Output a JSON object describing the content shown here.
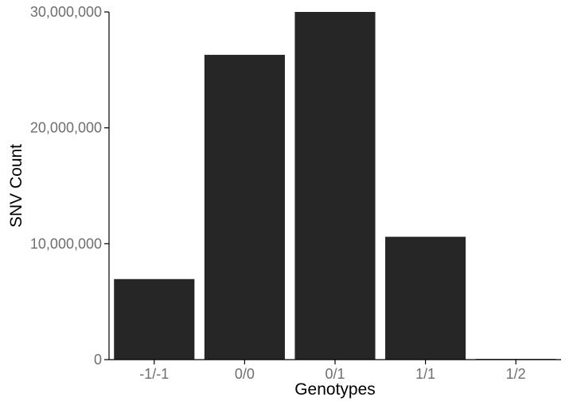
{
  "chart_data": {
    "type": "bar",
    "title": "",
    "xlabel": "Genotypes",
    "ylabel": "SNV Count",
    "categories": [
      "-1/-1",
      "0/0",
      "0/1",
      "1/1",
      "1/2"
    ],
    "values": [
      6950000,
      26300000,
      30000000,
      10600000,
      60000
    ],
    "ylim": [
      0,
      30000000
    ],
    "yticks": [
      0,
      10000000,
      20000000,
      30000000
    ],
    "ytick_labels": [
      "0",
      "10,000,000",
      "20,000,000",
      "30,000,000"
    ],
    "grid": false,
    "legend": "none",
    "bar_color": "#262626"
  }
}
